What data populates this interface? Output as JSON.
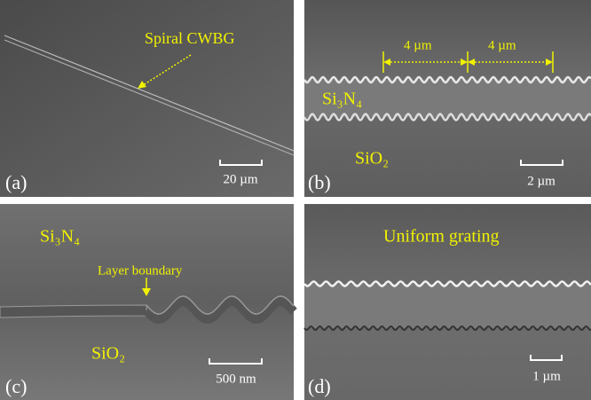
{
  "panels": [
    {
      "label": "(a)",
      "annotation": "Spiral CWBG",
      "scale_bar": "20 µm"
    },
    {
      "label": "(b)",
      "materials": [
        "Si₃N₄",
        "SiO₂"
      ],
      "dimensions": [
        "4 µm",
        "4 µm"
      ],
      "scale_bar": "2 µm"
    },
    {
      "label": "(c)",
      "materials": [
        "Si₃N₄",
        "SiO₂"
      ],
      "annotation": "Layer boundary",
      "scale_bar": "500 nm"
    },
    {
      "label": "(d)",
      "annotation": "Uniform grating",
      "scale_bar": "1 µm"
    }
  ]
}
